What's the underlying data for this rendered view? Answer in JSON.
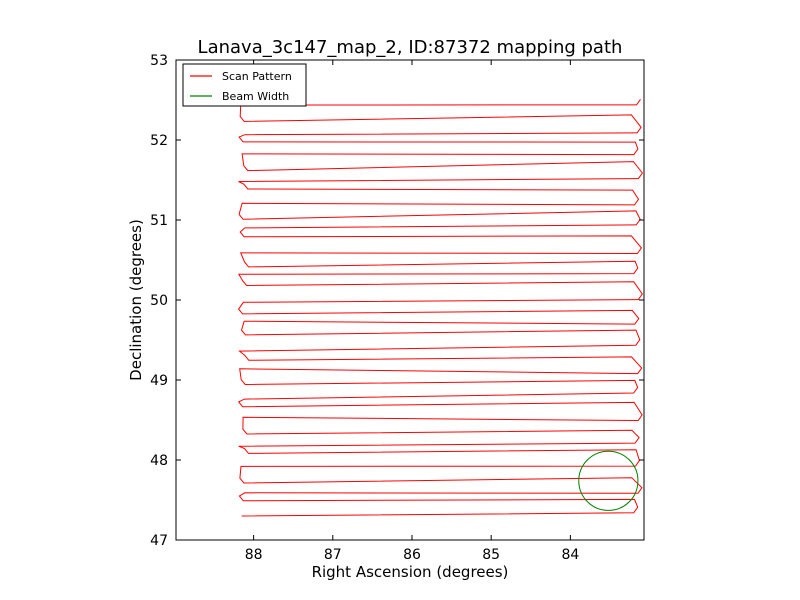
{
  "chart_data": {
    "type": "line",
    "title": "Lanava_3c147_map_2, ID:87372 mapping path",
    "xlabel": "Right Ascension (degrees)",
    "ylabel": "Declination (degrees)",
    "xlim": [
      88.98,
      83.07
    ],
    "ylim": [
      47,
      53
    ],
    "x_ticks": [
      88,
      87,
      86,
      85,
      84
    ],
    "y_ticks": [
      47,
      48,
      49,
      50,
      51,
      52,
      53
    ],
    "x_tick_labels": [
      "88",
      "87",
      "86",
      "85",
      "84"
    ],
    "y_tick_labels": [
      "47",
      "48",
      "49",
      "50",
      "51",
      "52",
      "53"
    ],
    "grid": false,
    "legend": "top-left",
    "scan": {
      "declination_start": 47.3,
      "declination_end": 52.42,
      "declination_step": 0.15,
      "ra_left": 88.15,
      "ra_right": 83.12
    },
    "series": [
      {
        "name": "Scan Pattern",
        "color": "#ff0000",
        "kind": "raster"
      },
      {
        "name": "Beam Width",
        "color": "#008000",
        "kind": "circle",
        "center": [
          83.52,
          47.74
        ],
        "radius_dec": 0.37
      }
    ]
  }
}
